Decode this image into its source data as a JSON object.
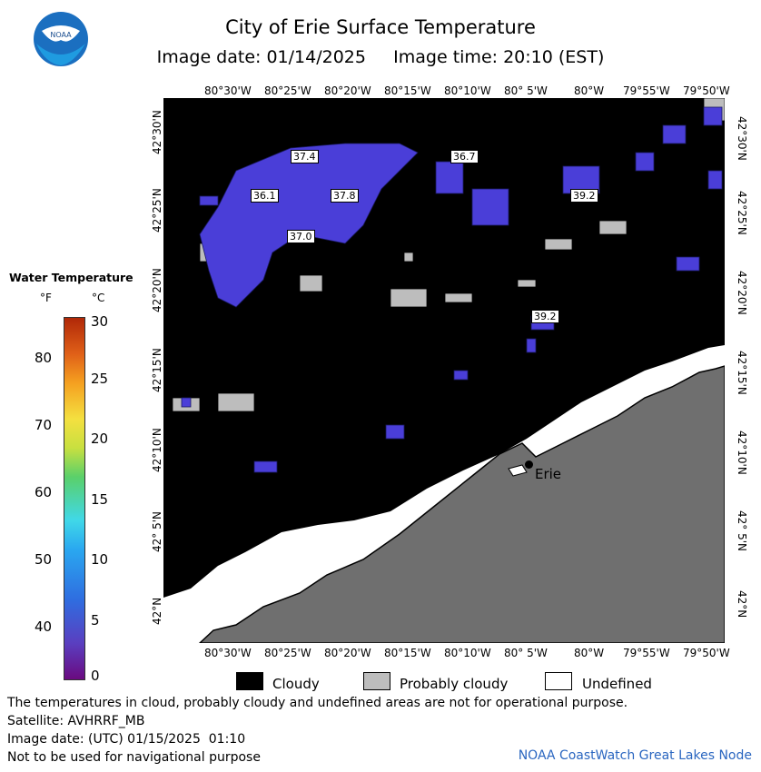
{
  "header": {
    "title": "City of Erie Surface Temperature",
    "subtitle": "Image date: 01/14/2025     Image time: 20:10 (EST)"
  },
  "axes": {
    "longitudes": [
      "80°30'W",
      "80°25'W",
      "80°20'W",
      "80°15'W",
      "80°10'W",
      "80° 5'W",
      "80°W",
      "79°55'W",
      "79°50'W"
    ],
    "latitudes": [
      "42°30'N",
      "42°25'N",
      "42°20'N",
      "42°15'N",
      "42°10'N",
      "42° 5'N",
      "42°N"
    ]
  },
  "legend": {
    "title": "Water Temperature",
    "unit_f": "°F",
    "unit_c": "°C",
    "f_ticks": [
      "80",
      "70",
      "60",
      "50",
      "40"
    ],
    "c_ticks": [
      "30",
      "25",
      "20",
      "15",
      "10",
      "5",
      "0"
    ],
    "categories": [
      "Cloudy",
      "Probably cloudy",
      "Undefined"
    ]
  },
  "map": {
    "city_label": "Erie",
    "temperature_labels": [
      "37.4",
      "36.7",
      "36.1",
      "37.8",
      "37.0",
      "39.2",
      "39.2"
    ],
    "colors": {
      "water_cloud": "#000000",
      "probably_cloudy": "#bdbdbd",
      "undefined": "#ffffff",
      "land": "#6f6f6f",
      "sst": "#4040d0"
    }
  },
  "footer": {
    "note": "The temperatures in cloud, probably cloudy and undefined areas are not for operational purpose.",
    "satellite": "Satellite: AVHRRF_MB",
    "image_date_utc": "Image date: (UTC) 01/15/2025  01:10",
    "nav": "Not to be used for navigational purpose",
    "credit": "NOAA CoastWatch Great Lakes Node"
  }
}
